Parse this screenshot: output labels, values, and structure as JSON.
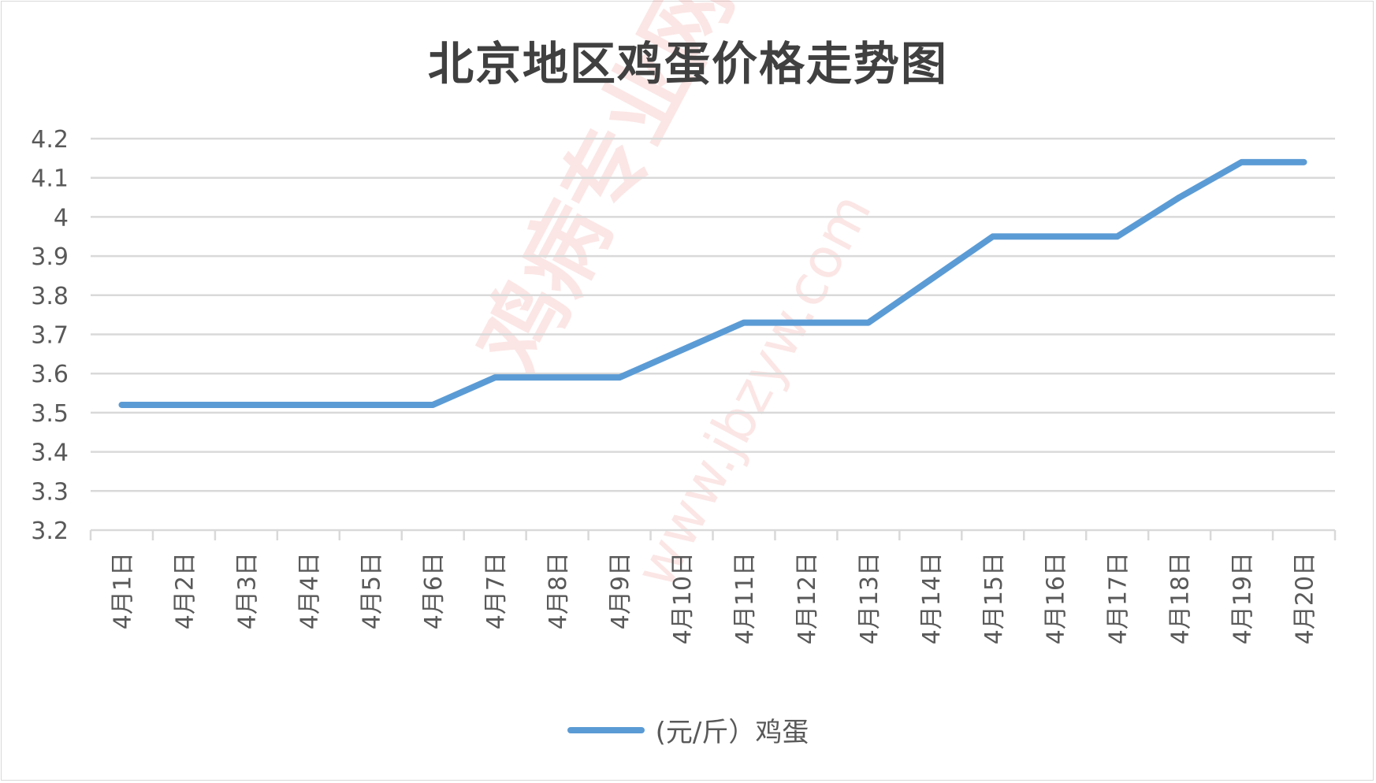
{
  "chart_data": {
    "type": "line",
    "title": "北京地区鸡蛋价格走势图",
    "categories": [
      "4月1日",
      "4月2日",
      "4月3日",
      "4月4日",
      "4月5日",
      "4月6日",
      "4月7日",
      "4月8日",
      "4月9日",
      "4月10日",
      "4月11日",
      "4月12日",
      "4月13日",
      "4月14日",
      "4月15日",
      "4月16日",
      "4月17日",
      "4月18日",
      "4月19日",
      "4月20日"
    ],
    "series": [
      {
        "name": "(元/斤）鸡蛋",
        "color": "#5b9bd5",
        "values": [
          3.52,
          3.52,
          3.52,
          3.52,
          3.52,
          3.52,
          3.59,
          3.59,
          3.59,
          3.66,
          3.73,
          3.73,
          3.73,
          3.84,
          3.95,
          3.95,
          3.95,
          4.05,
          4.14,
          4.14
        ]
      }
    ],
    "yticks": [
      "3.2",
      "3.3",
      "3.4",
      "3.5",
      "3.6",
      "3.7",
      "3.8",
      "3.9",
      "4",
      "4.1",
      "4.2"
    ],
    "ylim": [
      3.2,
      4.2
    ],
    "xlabel": "",
    "ylabel": "",
    "grid": true,
    "legend": "bottom"
  },
  "watermark": {
    "text": "鸡病专业网",
    "url": "www.jbzyw.com"
  }
}
